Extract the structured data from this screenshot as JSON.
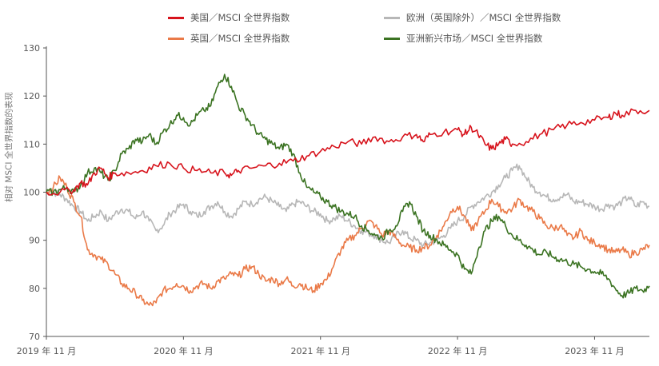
{
  "chart_data": {
    "type": "line",
    "ylabel": "相对 MSCI 全世界指数的表现",
    "ylim": [
      70,
      130
    ],
    "yticks": [
      70,
      80,
      90,
      100,
      110,
      120,
      130
    ],
    "xlim": [
      0,
      4.4
    ],
    "xticks": [
      {
        "x": 0,
        "label": "2019 年 11 月"
      },
      {
        "x": 1,
        "label": "2020 年 11 月"
      },
      {
        "x": 2,
        "label": "2021 年 11 月"
      },
      {
        "x": 3,
        "label": "2022 年 11 月"
      },
      {
        "x": 4,
        "label": "2023 年 11 月"
      }
    ],
    "grid": false,
    "legend_placement": "top",
    "series": [
      {
        "name": "美国／MSCI 全世界指数",
        "color": "#d7131c",
        "points": [
          [
            0,
            100
          ],
          [
            0.1,
            100
          ],
          [
            0.2,
            100.5
          ],
          [
            0.25,
            102
          ],
          [
            0.3,
            101.5
          ],
          [
            0.35,
            104
          ],
          [
            0.4,
            105
          ],
          [
            0.45,
            103
          ],
          [
            0.5,
            104
          ],
          [
            0.6,
            104
          ],
          [
            0.7,
            104.5
          ],
          [
            0.8,
            105.5
          ],
          [
            0.9,
            106
          ],
          [
            1.0,
            105
          ],
          [
            1.1,
            104.5
          ],
          [
            1.2,
            104
          ],
          [
            1.3,
            104
          ],
          [
            1.35,
            103.5
          ],
          [
            1.4,
            104.5
          ],
          [
            1.5,
            105
          ],
          [
            1.6,
            105.5
          ],
          [
            1.7,
            106
          ],
          [
            1.8,
            106.5
          ],
          [
            1.9,
            107.5
          ],
          [
            2.0,
            108.5
          ],
          [
            2.1,
            109.5
          ],
          [
            2.2,
            110.5
          ],
          [
            2.3,
            110
          ],
          [
            2.4,
            111.5
          ],
          [
            2.5,
            110.5
          ],
          [
            2.6,
            111.5
          ],
          [
            2.7,
            112
          ],
          [
            2.75,
            110.5
          ],
          [
            2.8,
            112
          ],
          [
            2.9,
            112.5
          ],
          [
            3.0,
            113
          ],
          [
            3.05,
            112
          ],
          [
            3.1,
            113.5
          ],
          [
            3.15,
            112
          ],
          [
            3.2,
            110
          ],
          [
            3.25,
            109
          ],
          [
            3.3,
            110
          ],
          [
            3.35,
            111
          ],
          [
            3.4,
            110
          ],
          [
            3.5,
            110.5
          ],
          [
            3.6,
            112
          ],
          [
            3.7,
            113
          ],
          [
            3.8,
            114
          ],
          [
            3.9,
            114.5
          ],
          [
            4.0,
            115
          ],
          [
            4.1,
            115.5
          ],
          [
            4.15,
            116.5
          ],
          [
            4.2,
            116
          ],
          [
            4.3,
            117
          ],
          [
            4.4,
            117
          ]
        ]
      },
      {
        "name": "英国／MSCI 全世界指数",
        "color": "#ea7a48",
        "points": [
          [
            0,
            100
          ],
          [
            0.05,
            101
          ],
          [
            0.1,
            103
          ],
          [
            0.15,
            101
          ],
          [
            0.2,
            98
          ],
          [
            0.25,
            95
          ],
          [
            0.3,
            88
          ],
          [
            0.35,
            87
          ],
          [
            0.4,
            86
          ],
          [
            0.45,
            85
          ],
          [
            0.5,
            83
          ],
          [
            0.55,
            81
          ],
          [
            0.6,
            80
          ],
          [
            0.65,
            79
          ],
          [
            0.7,
            77.5
          ],
          [
            0.75,
            76.5
          ],
          [
            0.8,
            77
          ],
          [
            0.85,
            79.5
          ],
          [
            0.9,
            80
          ],
          [
            0.95,
            81
          ],
          [
            1.0,
            80.5
          ],
          [
            1.05,
            79.5
          ],
          [
            1.1,
            80.5
          ],
          [
            1.15,
            81
          ],
          [
            1.2,
            80
          ],
          [
            1.25,
            81.5
          ],
          [
            1.3,
            82
          ],
          [
            1.35,
            83
          ],
          [
            1.4,
            82.5
          ],
          [
            1.45,
            84
          ],
          [
            1.5,
            84.5
          ],
          [
            1.55,
            83
          ],
          [
            1.6,
            81.5
          ],
          [
            1.65,
            82
          ],
          [
            1.7,
            81
          ],
          [
            1.75,
            82
          ],
          [
            1.8,
            80.5
          ],
          [
            1.85,
            81
          ],
          [
            1.9,
            80
          ],
          [
            1.95,
            79.5
          ],
          [
            2.0,
            81
          ],
          [
            2.05,
            82
          ],
          [
            2.1,
            85
          ],
          [
            2.15,
            88
          ],
          [
            2.2,
            90
          ],
          [
            2.25,
            91
          ],
          [
            2.3,
            92.5
          ],
          [
            2.35,
            94
          ],
          [
            2.4,
            93
          ],
          [
            2.45,
            91
          ],
          [
            2.5,
            92
          ],
          [
            2.55,
            90.5
          ],
          [
            2.6,
            89
          ],
          [
            2.65,
            88.5
          ],
          [
            2.7,
            88
          ],
          [
            2.75,
            88.5
          ],
          [
            2.8,
            89
          ],
          [
            2.85,
            91
          ],
          [
            2.9,
            93
          ],
          [
            2.95,
            96
          ],
          [
            3.0,
            97
          ],
          [
            3.05,
            95
          ],
          [
            3.1,
            92
          ],
          [
            3.15,
            94
          ],
          [
            3.2,
            96
          ],
          [
            3.25,
            98.5
          ],
          [
            3.3,
            97
          ],
          [
            3.35,
            96
          ],
          [
            3.4,
            96.5
          ],
          [
            3.45,
            98.5
          ],
          [
            3.5,
            97
          ],
          [
            3.55,
            96
          ],
          [
            3.6,
            94.5
          ],
          [
            3.65,
            93
          ],
          [
            3.7,
            92.5
          ],
          [
            3.75,
            93
          ],
          [
            3.8,
            91
          ],
          [
            3.85,
            90.5
          ],
          [
            3.9,
            92
          ],
          [
            3.95,
            90
          ],
          [
            4.0,
            89.5
          ],
          [
            4.05,
            89
          ],
          [
            4.1,
            88
          ],
          [
            4.15,
            87.5
          ],
          [
            4.2,
            88
          ],
          [
            4.25,
            87
          ],
          [
            4.3,
            87.5
          ],
          [
            4.35,
            88
          ],
          [
            4.4,
            89
          ]
        ]
      },
      {
        "name": "欧洲（英国除外）／MSCI 全世界指数",
        "color": "#b7b7b7",
        "points": [
          [
            0,
            100
          ],
          [
            0.05,
            100
          ],
          [
            0.1,
            99.5
          ],
          [
            0.15,
            98.5
          ],
          [
            0.2,
            97
          ],
          [
            0.25,
            96
          ],
          [
            0.3,
            94
          ],
          [
            0.35,
            95
          ],
          [
            0.4,
            96
          ],
          [
            0.45,
            94
          ],
          [
            0.5,
            95.5
          ],
          [
            0.55,
            96.5
          ],
          [
            0.6,
            96
          ],
          [
            0.65,
            94.5
          ],
          [
            0.7,
            96
          ],
          [
            0.75,
            94
          ],
          [
            0.8,
            92
          ],
          [
            0.85,
            93
          ],
          [
            0.9,
            95.5
          ],
          [
            0.95,
            96.5
          ],
          [
            1.0,
            97.5
          ],
          [
            1.05,
            96
          ],
          [
            1.1,
            95
          ],
          [
            1.15,
            96
          ],
          [
            1.2,
            97
          ],
          [
            1.25,
            98
          ],
          [
            1.3,
            96
          ],
          [
            1.35,
            95
          ],
          [
            1.4,
            96.5
          ],
          [
            1.45,
            98
          ],
          [
            1.5,
            97.5
          ],
          [
            1.55,
            98.5
          ],
          [
            1.6,
            99
          ],
          [
            1.65,
            98
          ],
          [
            1.7,
            97
          ],
          [
            1.75,
            96
          ],
          [
            1.8,
            97.5
          ],
          [
            1.85,
            98
          ],
          [
            1.9,
            97
          ],
          [
            1.95,
            96
          ],
          [
            2.0,
            95.5
          ],
          [
            2.05,
            94
          ],
          [
            2.1,
            94.5
          ],
          [
            2.15,
            95
          ],
          [
            2.2,
            94
          ],
          [
            2.25,
            93
          ],
          [
            2.3,
            92
          ],
          [
            2.35,
            91.5
          ],
          [
            2.4,
            91
          ],
          [
            2.45,
            90
          ],
          [
            2.5,
            89.5
          ],
          [
            2.55,
            91
          ],
          [
            2.6,
            92
          ],
          [
            2.65,
            90.5
          ],
          [
            2.7,
            90
          ],
          [
            2.75,
            89
          ],
          [
            2.8,
            89.5
          ],
          [
            2.85,
            90
          ],
          [
            2.9,
            91
          ],
          [
            2.95,
            92.5
          ],
          [
            3.0,
            94
          ],
          [
            3.05,
            95
          ],
          [
            3.1,
            97
          ],
          [
            3.15,
            98
          ],
          [
            3.2,
            99
          ],
          [
            3.25,
            100
          ],
          [
            3.3,
            101.5
          ],
          [
            3.35,
            103
          ],
          [
            3.4,
            104.5
          ],
          [
            3.45,
            105.5
          ],
          [
            3.5,
            103
          ],
          [
            3.55,
            101
          ],
          [
            3.6,
            100
          ],
          [
            3.65,
            99
          ],
          [
            3.7,
            98.5
          ],
          [
            3.75,
            99
          ],
          [
            3.8,
            99.5
          ],
          [
            3.85,
            98
          ],
          [
            3.9,
            98
          ],
          [
            3.95,
            97.5
          ],
          [
            4.0,
            97
          ],
          [
            4.05,
            96.5
          ],
          [
            4.1,
            97.5
          ],
          [
            4.15,
            97
          ],
          [
            4.2,
            98
          ],
          [
            4.25,
            99
          ],
          [
            4.3,
            97
          ],
          [
            4.35,
            98
          ],
          [
            4.4,
            97
          ]
        ]
      },
      {
        "name": "亚洲新兴市场／MSCI 全世界指数",
        "color": "#3b7322",
        "points": [
          [
            0,
            100
          ],
          [
            0.05,
            100
          ],
          [
            0.1,
            100.5
          ],
          [
            0.15,
            101
          ],
          [
            0.2,
            100
          ],
          [
            0.25,
            101.5
          ],
          [
            0.3,
            104
          ],
          [
            0.35,
            105
          ],
          [
            0.4,
            104
          ],
          [
            0.45,
            102.5
          ],
          [
            0.5,
            104.5
          ],
          [
            0.55,
            108
          ],
          [
            0.6,
            109
          ],
          [
            0.65,
            111
          ],
          [
            0.7,
            110.5
          ],
          [
            0.75,
            112
          ],
          [
            0.8,
            110
          ],
          [
            0.85,
            112.5
          ],
          [
            0.9,
            114
          ],
          [
            0.95,
            116
          ],
          [
            1.0,
            115.5
          ],
          [
            1.05,
            114
          ],
          [
            1.1,
            116
          ],
          [
            1.15,
            117
          ],
          [
            1.2,
            118
          ],
          [
            1.25,
            122
          ],
          [
            1.3,
            124.5
          ],
          [
            1.35,
            122
          ],
          [
            1.4,
            118
          ],
          [
            1.45,
            116
          ],
          [
            1.5,
            114
          ],
          [
            1.55,
            112
          ],
          [
            1.6,
            111
          ],
          [
            1.65,
            110
          ],
          [
            1.7,
            109
          ],
          [
            1.75,
            110
          ],
          [
            1.8,
            108
          ],
          [
            1.85,
            104
          ],
          [
            1.9,
            101
          ],
          [
            1.95,
            100
          ],
          [
            2.0,
            99
          ],
          [
            2.05,
            98
          ],
          [
            2.1,
            97
          ],
          [
            2.15,
            96
          ],
          [
            2.2,
            95.5
          ],
          [
            2.25,
            95
          ],
          [
            2.3,
            93
          ],
          [
            2.35,
            92
          ],
          [
            2.4,
            91
          ],
          [
            2.45,
            90.5
          ],
          [
            2.5,
            92
          ],
          [
            2.55,
            93
          ],
          [
            2.6,
            96
          ],
          [
            2.65,
            98
          ],
          [
            2.7,
            95
          ],
          [
            2.75,
            92
          ],
          [
            2.8,
            91
          ],
          [
            2.85,
            90
          ],
          [
            2.9,
            89
          ],
          [
            2.95,
            88
          ],
          [
            3.0,
            87
          ],
          [
            3.05,
            84
          ],
          [
            3.1,
            83
          ],
          [
            3.15,
            88
          ],
          [
            3.2,
            92
          ],
          [
            3.25,
            94
          ],
          [
            3.3,
            95
          ],
          [
            3.35,
            93
          ],
          [
            3.4,
            91
          ],
          [
            3.45,
            90
          ],
          [
            3.5,
            89
          ],
          [
            3.55,
            88
          ],
          [
            3.6,
            87
          ],
          [
            3.65,
            87.5
          ],
          [
            3.7,
            86.5
          ],
          [
            3.75,
            86
          ],
          [
            3.8,
            85.5
          ],
          [
            3.85,
            85
          ],
          [
            3.9,
            84.5
          ],
          [
            3.95,
            84
          ],
          [
            4.0,
            83.5
          ],
          [
            4.05,
            83
          ],
          [
            4.1,
            82
          ],
          [
            4.15,
            80
          ],
          [
            4.2,
            78.5
          ],
          [
            4.25,
            79
          ],
          [
            4.3,
            80
          ],
          [
            4.35,
            79.5
          ],
          [
            4.4,
            80.5
          ]
        ]
      }
    ]
  }
}
